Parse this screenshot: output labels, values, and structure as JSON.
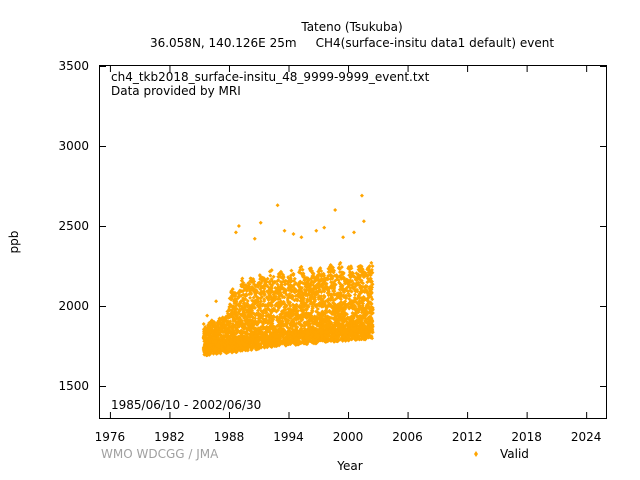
{
  "chart_data": {
    "type": "scatter",
    "title": "Tateno (Tsukuba)",
    "subtitle": "36.058N, 140.126E 25m     CH4(surface-insitu data1 default) event",
    "xlabel": "Year",
    "ylabel": "ppb",
    "xlim": [
      1975,
      2026
    ],
    "ylim": [
      1300,
      3500
    ],
    "x_ticks": [
      "1976",
      "1982",
      "1988",
      "1994",
      "2000",
      "2006",
      "2012",
      "2018",
      "2024"
    ],
    "y_ticks": [
      "1500",
      "2000",
      "2500",
      "3000",
      "3500"
    ],
    "annotations": {
      "filename": "ch4_tkb2018_surface-insitu_48_9999-9999_event.txt",
      "provider": "Data provided by MRI",
      "period": "1985/06/10 - 2002/06/30"
    },
    "credit": "WMO WDCGG / JMA",
    "legend": {
      "position": "bottom-right",
      "entries": [
        "Valid"
      ]
    },
    "series": [
      {
        "name": "Valid",
        "color": "#ffa500",
        "marker": "diamond",
        "x_range": [
          1985.44,
          2002.5
        ],
        "envelope": [
          {
            "x": 1985.5,
            "low": 1690,
            "high": 1900
          },
          {
            "x": 1986.5,
            "low": 1700,
            "high": 1920
          },
          {
            "x": 1987.5,
            "low": 1705,
            "high": 1950
          },
          {
            "x": 1988.5,
            "low": 1710,
            "high": 2150
          },
          {
            "x": 1989.5,
            "low": 1720,
            "high": 2200
          },
          {
            "x": 1990.5,
            "low": 1725,
            "high": 2220
          },
          {
            "x": 1991.5,
            "low": 1735,
            "high": 2230
          },
          {
            "x": 1992.5,
            "low": 1745,
            "high": 2230
          },
          {
            "x": 1993.5,
            "low": 1750,
            "high": 2240
          },
          {
            "x": 1994.5,
            "low": 1755,
            "high": 2240
          },
          {
            "x": 1995.5,
            "low": 1760,
            "high": 2250
          },
          {
            "x": 1996.5,
            "low": 1765,
            "high": 2250
          },
          {
            "x": 1997.5,
            "low": 1770,
            "high": 2260
          },
          {
            "x": 1998.5,
            "low": 1775,
            "high": 2280
          },
          {
            "x": 1999.5,
            "low": 1780,
            "high": 2270
          },
          {
            "x": 2000.5,
            "low": 1785,
            "high": 2270
          },
          {
            "x": 2001.5,
            "low": 1790,
            "high": 2280
          },
          {
            "x": 2002.4,
            "low": 1795,
            "high": 2280
          }
        ],
        "outliers": [
          {
            "x": 1988.7,
            "y": 2460
          },
          {
            "x": 1989.0,
            "y": 2500
          },
          {
            "x": 1990.6,
            "y": 2420
          },
          {
            "x": 1991.2,
            "y": 2520
          },
          {
            "x": 1992.9,
            "y": 2630
          },
          {
            "x": 1993.6,
            "y": 2470
          },
          {
            "x": 1994.5,
            "y": 2450
          },
          {
            "x": 1995.3,
            "y": 2430
          },
          {
            "x": 1996.8,
            "y": 2470
          },
          {
            "x": 1997.6,
            "y": 2490
          },
          {
            "x": 1998.7,
            "y": 2600
          },
          {
            "x": 1999.5,
            "y": 2430
          },
          {
            "x": 2000.6,
            "y": 2460
          },
          {
            "x": 2001.4,
            "y": 2690
          },
          {
            "x": 2001.6,
            "y": 2530
          },
          {
            "x": 1986.7,
            "y": 2030
          },
          {
            "x": 1985.8,
            "y": 1940
          }
        ]
      }
    ]
  }
}
